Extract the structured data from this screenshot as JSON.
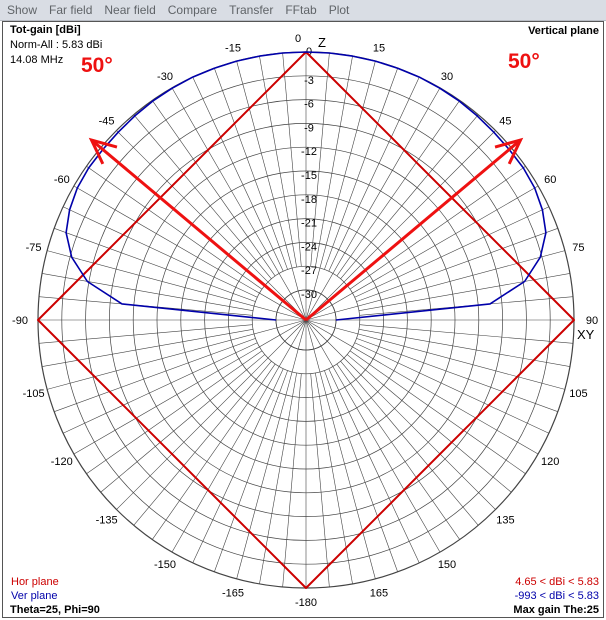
{
  "menu": [
    "Show",
    "Far field",
    "Near field",
    "Compare",
    "Transfer",
    "FFtab",
    "Plot"
  ],
  "header": {
    "title": "Tot-gain [dBi]",
    "norm": "Norm-All : 5.83 dBi",
    "freq": "14.08 MHz",
    "plane": "Vertical plane"
  },
  "footer": {
    "hor_label": "Hor plane",
    "ver_label": "Ver plane",
    "theta_phi": "Theta=25, Phi=90",
    "hor_range": "4.65 < dBi < 5.83",
    "ver_range": "-993 < dBi < 5.83",
    "max_gain": "Max gain The:25"
  },
  "axes": {
    "z_label": "Z",
    "xy_label": "XY"
  },
  "annotations": {
    "left_angle": "50°",
    "right_angle": "50°"
  },
  "colors": {
    "hor": "#cc0000",
    "ver": "#0000aa",
    "annotation": "#ee1111",
    "grid": "#444444"
  },
  "chart_data": {
    "type": "polar",
    "radial_ticks": [
      "0",
      "-3",
      "-6",
      "-9",
      "-12",
      "-15",
      "-18",
      "-21",
      "-24",
      "-27",
      "-30"
    ],
    "angle_labels": [
      "0",
      "15",
      "30",
      "45",
      "60",
      "75",
      "90",
      "105",
      "120",
      "135",
      "150",
      "165",
      "-180",
      "-165",
      "-150",
      "-135",
      "-120",
      "-105",
      "-90",
      "-75",
      "-60",
      "-45",
      "-30",
      "-15"
    ],
    "angle_values": [
      0,
      15,
      30,
      45,
      60,
      75,
      90,
      105,
      120,
      135,
      150,
      165,
      180,
      -165,
      -150,
      -135,
      -120,
      -105,
      -90,
      -75,
      -60,
      -45,
      -30,
      -15
    ],
    "series": [
      {
        "name": "Hor plane",
        "color": "#cc0000",
        "gain_dbi_range": [
          4.65,
          5.83
        ],
        "points": [
          [
            0,
            0
          ],
          [
            90,
            0
          ],
          [
            180,
            0
          ],
          [
            270,
            0
          ],
          [
            360,
            0
          ]
        ]
      },
      {
        "name": "Ver plane",
        "color": "#0000aa",
        "points": [
          [
            -90,
            -30
          ],
          [
            -85,
            -10.5
          ],
          [
            -80,
            -5.8
          ],
          [
            -75,
            -3.2
          ],
          [
            -70,
            -1.6
          ],
          [
            -65,
            -0.9
          ],
          [
            -60,
            -0.5
          ],
          [
            -55,
            -0.35
          ],
          [
            -50,
            -0.35
          ],
          [
            -45,
            -0.3
          ],
          [
            -40,
            -0.2
          ],
          [
            -35,
            -0.1
          ],
          [
            -30,
            -0.05
          ],
          [
            -25,
            0
          ],
          [
            -20,
            0
          ],
          [
            -15,
            0
          ],
          [
            -10,
            0
          ],
          [
            -5,
            0
          ],
          [
            0,
            0
          ],
          [
            5,
            0
          ],
          [
            10,
            0
          ],
          [
            15,
            0
          ],
          [
            20,
            0
          ],
          [
            25,
            0
          ],
          [
            30,
            -0.05
          ],
          [
            35,
            -0.1
          ],
          [
            40,
            -0.2
          ],
          [
            45,
            -0.3
          ],
          [
            50,
            -0.35
          ],
          [
            55,
            -0.35
          ],
          [
            60,
            -0.5
          ],
          [
            65,
            -0.9
          ],
          [
            70,
            -1.6
          ],
          [
            75,
            -3.2
          ],
          [
            80,
            -5.8
          ],
          [
            85,
            -10.5
          ],
          [
            90,
            -30
          ]
        ]
      }
    ],
    "annotation_lines_deg": [
      -50,
      50
    ],
    "rlim": [
      -30,
      0
    ]
  }
}
